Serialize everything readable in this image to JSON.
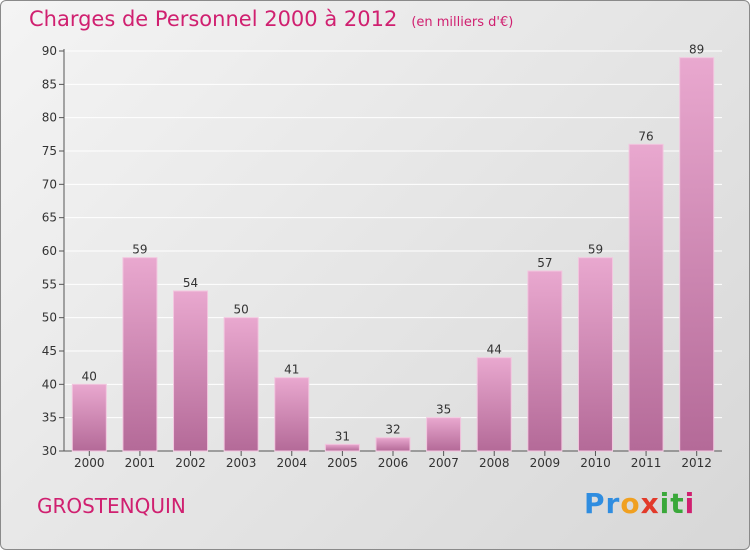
{
  "header": {
    "title": "Charges de Personnel 2000 à 2012",
    "subtitle": "(en milliers d'€)"
  },
  "footer": {
    "commune": "GROSTENQUIN",
    "logo_parts": [
      "Pr",
      "o",
      "x",
      "it",
      "i"
    ]
  },
  "colors": {
    "title": "#d02070",
    "bar_top": "#e9a8cf",
    "bar_bottom": "#b46a98"
  },
  "chart_data": {
    "type": "bar",
    "categories": [
      "2000",
      "2001",
      "2002",
      "2003",
      "2004",
      "2005",
      "2006",
      "2007",
      "2008",
      "2009",
      "2010",
      "2011",
      "2012"
    ],
    "values": [
      40,
      59,
      54,
      50,
      41,
      31,
      32,
      35,
      44,
      57,
      59,
      76,
      89
    ],
    "ylim": [
      30,
      90
    ],
    "yticks": [
      30,
      35,
      40,
      45,
      50,
      55,
      60,
      65,
      70,
      75,
      80,
      85,
      90
    ],
    "grid": true,
    "data_labels": true
  }
}
